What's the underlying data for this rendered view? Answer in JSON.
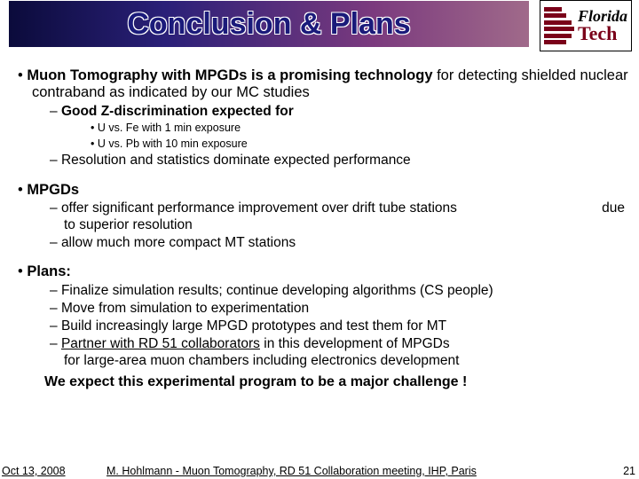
{
  "title": "Conclusion & Plans",
  "logo": {
    "line1": "Florida",
    "line2": "Tech"
  },
  "bullets": [
    {
      "head_bold": "Muon Tomography with MPGDs is a promising technology",
      "head_rest": " for detecting shielded nuclear contraband as indicated by our MC studies",
      "sub": [
        {
          "text_bold": "Good Z-discrimination expected for",
          "subsub": [
            "U vs. Fe with   1 min exposure",
            "U vs. Pb with 10 min exposure"
          ]
        },
        {
          "text": "Resolution and statistics dominate expected performance"
        }
      ]
    },
    {
      "head_bold": "MPGDs",
      "sub": [
        {
          "text": "offer significant performance improvement over drift tube stations",
          "right": "due",
          "cont": "to superior resolution"
        },
        {
          "text": "allow much more compact MT stations"
        }
      ]
    },
    {
      "head_bold": "Plans:",
      "sub": [
        {
          "text": "Finalize simulation results; continue developing algorithms (CS people)"
        },
        {
          "text": "Move from simulation to experimentation"
        },
        {
          "text": "Build increasingly large MPGD prototypes and test them for MT"
        },
        {
          "underline": "Partner with RD 51 collaborators",
          "text_after": " in this development of MPGDs",
          "cont_plain": "for large-area muon chambers including electronics development"
        }
      ]
    }
  ],
  "expect": "We expect this experimental program to be a major challenge !",
  "footer": {
    "date": "Oct 13, 2008",
    "mid": "M. Hohlmann - Muon Tomography, RD 51 Collaboration meeting, IHP, Paris",
    "page": "21"
  },
  "colors": {
    "title_text": "#1a1a7a",
    "logo_red": "#7a0019"
  }
}
